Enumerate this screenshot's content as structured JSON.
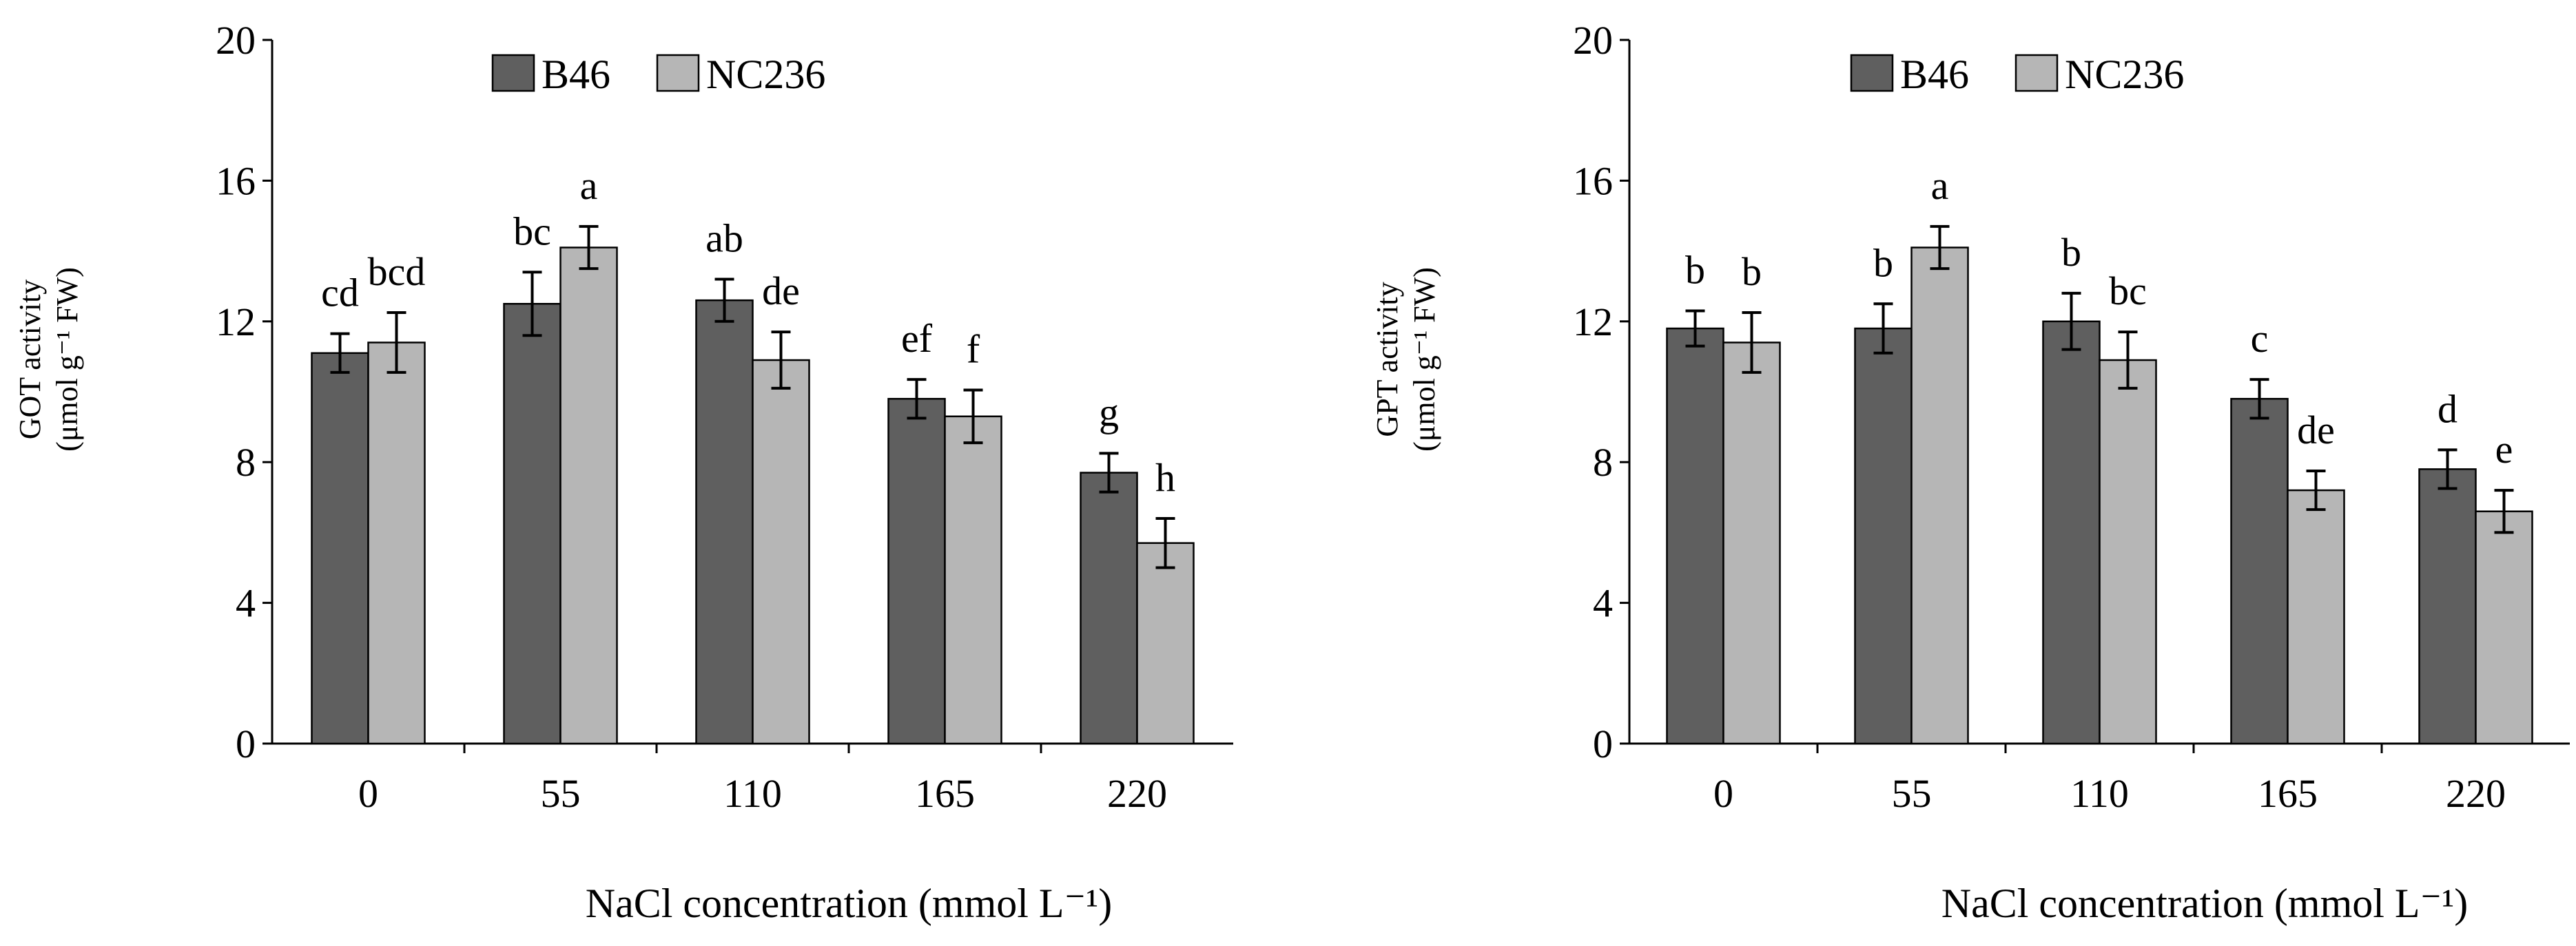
{
  "chart_data": [
    {
      "type": "bar",
      "title": "",
      "categories": [
        "0",
        "55",
        "110",
        "165",
        "220"
      ],
      "xlabel": "NaCl concentration (mmol L⁻¹)",
      "ylabel_line1": "GOT activity",
      "ylabel_line2": "(μmol g⁻¹ FW)",
      "ylim": [
        0,
        20
      ],
      "yticks": [
        "0",
        "4",
        "8",
        "12",
        "16",
        "20"
      ],
      "series": [
        {
          "name": "B46",
          "color": "#5f5f5f",
          "values": [
            11.1,
            12.5,
            12.6,
            9.8,
            7.7
          ],
          "errors": [
            0.55,
            0.9,
            0.6,
            0.55,
            0.55
          ],
          "letters": [
            "cd",
            "bc",
            "ab",
            "ef",
            "g"
          ]
        },
        {
          "name": "NC236",
          "color": "#b6b6b6",
          "values": [
            11.4,
            14.1,
            10.9,
            9.3,
            5.7
          ],
          "errors": [
            0.85,
            0.6,
            0.8,
            0.75,
            0.7
          ],
          "letters": [
            "bcd",
            "a",
            "de",
            "f",
            "h"
          ]
        }
      ]
    },
    {
      "type": "bar",
      "title": "",
      "categories": [
        "0",
        "55",
        "110",
        "165",
        "220"
      ],
      "xlabel": "NaCl concentration (mmol L⁻¹)",
      "ylabel_line1": "GPT activity",
      "ylabel_line2": "(μmol g⁻¹ FW)",
      "ylim": [
        0,
        20
      ],
      "yticks": [
        "0",
        "4",
        "8",
        "12",
        "16",
        "20"
      ],
      "series": [
        {
          "name": "B46",
          "color": "#5f5f5f",
          "values": [
            11.8,
            11.8,
            12.0,
            9.8,
            7.8
          ],
          "errors": [
            0.5,
            0.7,
            0.8,
            0.55,
            0.55
          ],
          "letters": [
            "b",
            "b",
            "b",
            "c",
            "d"
          ]
        },
        {
          "name": "NC236",
          "color": "#b6b6b6",
          "values": [
            11.4,
            14.1,
            10.9,
            7.2,
            6.6
          ],
          "errors": [
            0.85,
            0.6,
            0.8,
            0.55,
            0.6
          ],
          "letters": [
            "b",
            "a",
            "bc",
            "de",
            "e"
          ]
        }
      ]
    }
  ]
}
